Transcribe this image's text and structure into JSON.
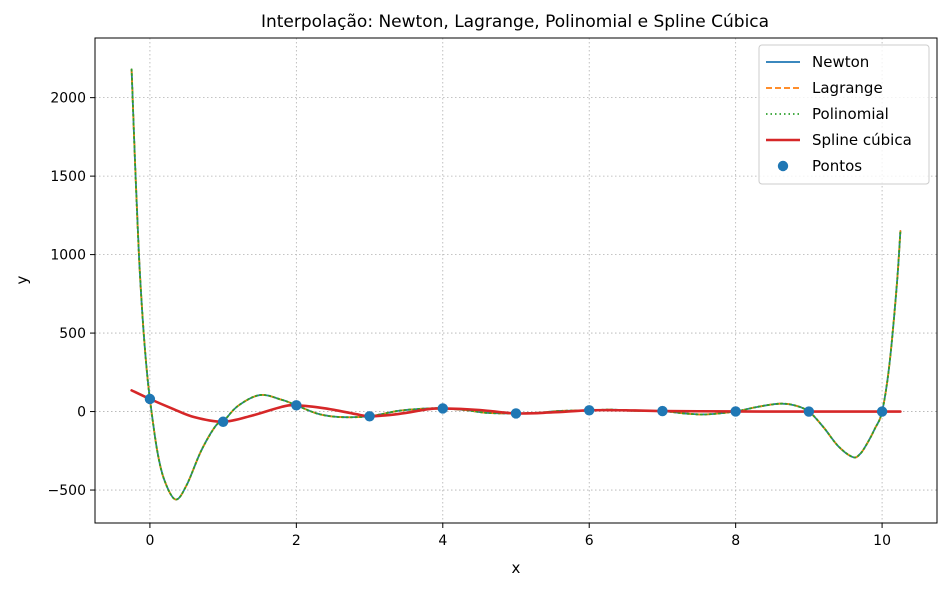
{
  "chart_data": {
    "type": "line",
    "title": "Interpolação: Newton, Lagrange, Polinomial e Spline Cúbica",
    "xlabel": "x",
    "ylabel": "y",
    "xlim": [
      -0.75,
      10.75
    ],
    "ylim": [
      -710,
      2380
    ],
    "xticks": [
      0,
      2,
      4,
      6,
      8,
      10
    ],
    "yticks": [
      -500,
      0,
      500,
      1000,
      1500,
      2000
    ],
    "xtick_labels": [
      "0",
      "2",
      "4",
      "6",
      "8",
      "10"
    ],
    "ytick_labels": [
      "−500",
      "0",
      "500",
      "1000",
      "1500",
      "2000"
    ],
    "grid": true,
    "legend_position": "top-right",
    "points": {
      "name": "Pontos",
      "x": [
        0,
        1,
        2,
        3,
        4,
        5,
        6,
        7,
        8,
        9,
        10
      ],
      "y": [
        80,
        -65,
        40,
        -30,
        20,
        -12,
        8,
        3,
        1,
        0,
        0
      ]
    },
    "series": [
      {
        "name": "Newton",
        "color": "#1f77b4",
        "style": "solid",
        "x": [
          -0.25,
          -0.2,
          -0.15,
          -0.1,
          -0.05,
          0,
          0.1,
          0.2,
          0.35,
          0.5,
          0.7,
          0.9,
          1.0,
          1.2,
          1.5,
          1.8,
          2.0,
          2.3,
          2.6,
          3.0,
          3.4,
          3.8,
          4.0,
          4.3,
          4.6,
          5.0,
          5.3,
          5.6,
          6.0,
          6.3,
          6.6,
          7.0,
          7.3,
          7.6,
          8.0,
          8.3,
          8.6,
          8.8,
          9.0,
          9.2,
          9.4,
          9.6,
          9.7,
          9.8,
          9.9,
          10.0,
          10.1,
          10.2,
          10.25
        ],
        "y": [
          2180,
          1550,
          1000,
          600,
          300,
          80,
          -250,
          -440,
          -560,
          -470,
          -250,
          -90,
          -65,
          35,
          105,
          75,
          40,
          -15,
          -35,
          -30,
          5,
          20,
          20,
          10,
          -8,
          -12,
          -8,
          4,
          8,
          12,
          5,
          3,
          -12,
          -18,
          1,
          30,
          50,
          40,
          0,
          -100,
          -220,
          -290,
          -270,
          -200,
          -110,
          0,
          300,
          800,
          1150
        ]
      },
      {
        "name": "Lagrange",
        "color": "#ff7f0e",
        "style": "dashed",
        "x": [
          -0.25,
          -0.2,
          -0.15,
          -0.1,
          -0.05,
          0,
          0.1,
          0.2,
          0.35,
          0.5,
          0.7,
          0.9,
          1.0,
          1.2,
          1.5,
          1.8,
          2.0,
          2.3,
          2.6,
          3.0,
          3.4,
          3.8,
          4.0,
          4.3,
          4.6,
          5.0,
          5.3,
          5.6,
          6.0,
          6.3,
          6.6,
          7.0,
          7.3,
          7.6,
          8.0,
          8.3,
          8.6,
          8.8,
          9.0,
          9.2,
          9.4,
          9.6,
          9.7,
          9.8,
          9.9,
          10.0,
          10.1,
          10.2,
          10.25
        ],
        "y": [
          2180,
          1550,
          1000,
          600,
          300,
          80,
          -250,
          -440,
          -560,
          -470,
          -250,
          -90,
          -65,
          35,
          105,
          75,
          40,
          -15,
          -35,
          -30,
          5,
          20,
          20,
          10,
          -8,
          -12,
          -8,
          4,
          8,
          12,
          5,
          3,
          -12,
          -18,
          1,
          30,
          50,
          40,
          0,
          -100,
          -220,
          -290,
          -270,
          -200,
          -110,
          0,
          300,
          800,
          1150
        ]
      },
      {
        "name": "Polinomial",
        "color": "#2ca02c",
        "style": "dotted",
        "x": [
          -0.25,
          -0.2,
          -0.15,
          -0.1,
          -0.05,
          0,
          0.1,
          0.2,
          0.35,
          0.5,
          0.7,
          0.9,
          1.0,
          1.2,
          1.5,
          1.8,
          2.0,
          2.3,
          2.6,
          3.0,
          3.4,
          3.8,
          4.0,
          4.3,
          4.6,
          5.0,
          5.3,
          5.6,
          6.0,
          6.3,
          6.6,
          7.0,
          7.3,
          7.6,
          8.0,
          8.3,
          8.6,
          8.8,
          9.0,
          9.2,
          9.4,
          9.6,
          9.7,
          9.8,
          9.9,
          10.0,
          10.1,
          10.2,
          10.25
        ],
        "y": [
          2180,
          1550,
          1000,
          600,
          300,
          80,
          -250,
          -440,
          -560,
          -470,
          -250,
          -90,
          -65,
          35,
          105,
          75,
          40,
          -15,
          -35,
          -30,
          5,
          20,
          20,
          10,
          -8,
          -12,
          -8,
          4,
          8,
          12,
          5,
          3,
          -12,
          -18,
          1,
          30,
          50,
          40,
          0,
          -100,
          -220,
          -290,
          -270,
          -200,
          -110,
          0,
          300,
          800,
          1150
        ]
      },
      {
        "name": "Spline cúbica",
        "color": "#d62728",
        "style": "solid-thick",
        "x": [
          -0.25,
          0,
          0.3,
          0.6,
          1.0,
          1.4,
          1.8,
          2.0,
          2.4,
          2.8,
          3.0,
          3.4,
          3.8,
          4.0,
          4.5,
          5.0,
          5.5,
          6.0,
          6.5,
          7.0,
          7.5,
          8.0,
          8.5,
          9.0,
          9.5,
          10.0,
          10.25
        ],
        "y": [
          135,
          80,
          20,
          -35,
          -65,
          -25,
          30,
          40,
          20,
          -15,
          -30,
          -15,
          15,
          20,
          10,
          -12,
          -5,
          8,
          8,
          3,
          2,
          1,
          0,
          0,
          0,
          0,
          0
        ]
      }
    ]
  }
}
